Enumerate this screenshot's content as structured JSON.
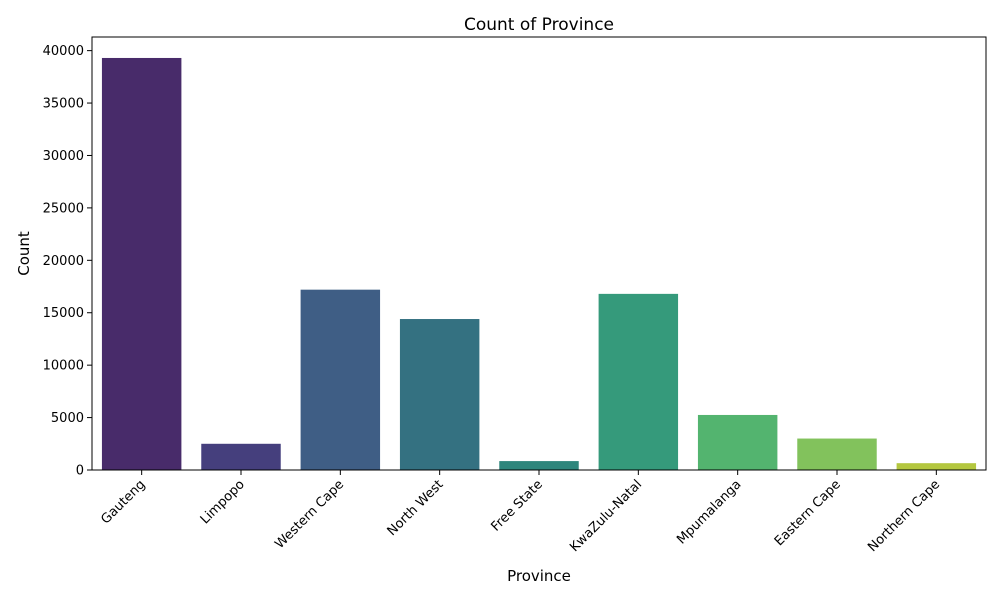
{
  "chart_data": {
    "type": "bar",
    "title": "Count of Province",
    "xlabel": "Province",
    "ylabel": "Count",
    "categories": [
      "Gauteng",
      "Limpopo",
      "Western Cape",
      "North West",
      "Free State",
      "KwaZulu-Natal",
      "Mpumalanga",
      "Eastern Cape",
      "Northern Cape"
    ],
    "values": [
      39300,
      2500,
      17200,
      14400,
      850,
      16800,
      5250,
      3000,
      650
    ],
    "colors": [
      "#482b6a",
      "#453f7d",
      "#3f5e85",
      "#347181",
      "#2e867c",
      "#359a7b",
      "#53b46f",
      "#82c25c",
      "#b4c73f"
    ],
    "ylim": [
      0,
      41300
    ],
    "yticks": [
      0,
      5000,
      10000,
      15000,
      20000,
      25000,
      30000,
      35000,
      40000
    ],
    "grid": false,
    "legend": "none"
  }
}
